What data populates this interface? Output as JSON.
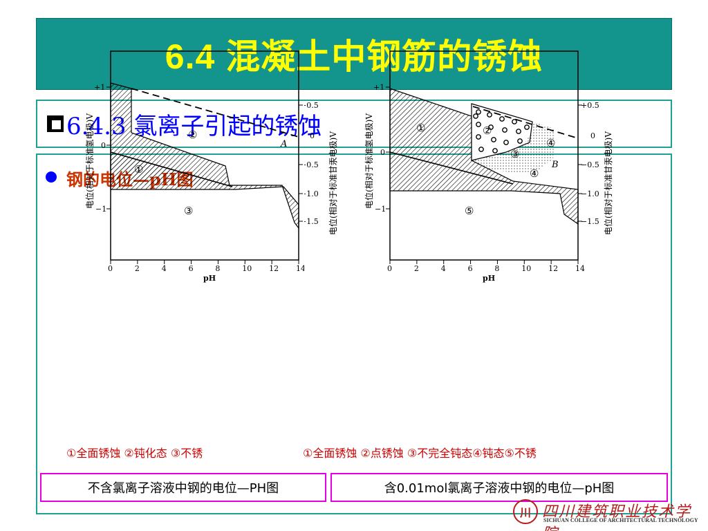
{
  "title": "6.4  混凝土中钢筋的锈蚀",
  "subtitle": "6.4.3 氯离子引起的锈蚀",
  "section_heading": "钢的电位—pH图",
  "diagram_left": {
    "y_left_label": "电位(相对于标准氢电极)V",
    "y_right_label": "电位(相对于标准甘汞电极)V",
    "x_label": "pH",
    "x_ticks": [
      "0",
      "2",
      "4",
      "6",
      "8",
      "10",
      "12",
      "14"
    ],
    "y_left_ticks": [
      "+1",
      "0",
      "−1"
    ],
    "y_right_ticks": [
      "+0.5",
      "0",
      "−0.5",
      "−1.0",
      "−1.5"
    ],
    "region_labels": [
      "②",
      "①",
      "③"
    ],
    "line_label": "A"
  },
  "diagram_right": {
    "y_left_label": "电位(相对于标准氢电极)V",
    "y_right_label": "电位(相对于标准甘汞电极)V",
    "x_label": "pH",
    "x_ticks": [
      "0",
      "2",
      "4",
      "6",
      "8",
      "10",
      "12",
      "14"
    ],
    "y_left_ticks": [
      "+1",
      "0",
      "−1"
    ],
    "y_right_ticks": [
      "+0.5",
      "0",
      "−0.5",
      "−1.0",
      "−1.5"
    ],
    "region_labels": [
      "①",
      "②",
      "③",
      "④",
      "④",
      "⑤"
    ],
    "line_label": "B"
  },
  "legend_left": "①全面锈蚀 ②钝化态 ③不锈",
  "legend_right": "①全面锈蚀 ②点锈蚀 ③不完全钝态④钝态⑤不锈",
  "caption_left": "不含氯离子溶液中钢的电位—PH图",
  "caption_right": "含0.01mol氯离子溶液中钢的电位—pH图",
  "logo": {
    "cn": "四川建筑职业技术学院",
    "en": "SICHUAN COLLEGE OF ARCHITECTURAL TECHNOLOGY",
    "seal": "川"
  },
  "colors": {
    "title_bg": "#13958d",
    "title_text": "#ffff00",
    "subtitle_text": "#0000ff",
    "heading_text": "#cc3300",
    "legend_text": "#cc0000",
    "caption_border": "#e000e0",
    "box_border": "#20a090"
  }
}
